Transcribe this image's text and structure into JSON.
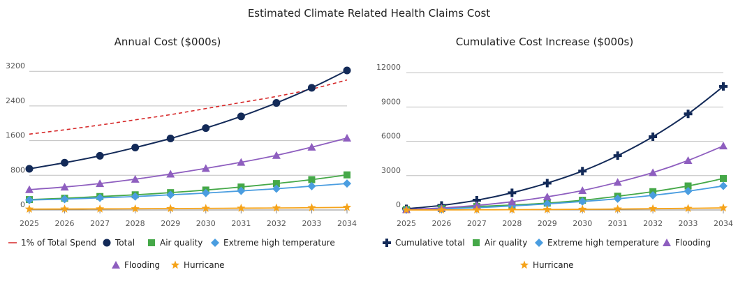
{
  "title": "Estimated Climate Related Health Claims Cost",
  "colors": {
    "spend": "#d62728",
    "total": "#132a58",
    "air": "#45a848",
    "heat": "#4a9de0",
    "flood": "#8e5ebf",
    "hurricane": "#f5a31a",
    "grid": "#bfbfbf",
    "axis": "#888888"
  },
  "chart_data": [
    {
      "type": "line",
      "title": "Annual Cost ($000s)",
      "x": [
        "2025",
        "2026",
        "2027",
        "2028",
        "2029",
        "2030",
        "2031",
        "2032",
        "2033",
        "2034"
      ],
      "ylim": [
        0,
        3300
      ],
      "yticks": [
        "0",
        "800",
        "1600",
        "2400",
        "3200"
      ],
      "ytick_values": [
        0,
        800,
        1600,
        2400,
        3200
      ],
      "grid": true,
      "legend_position": "bottom",
      "series": [
        {
          "name": "1% of Total Spend",
          "key": "spend",
          "marker": "dash",
          "values": [
            1750,
            1850,
            1960,
            2080,
            2200,
            2340,
            2480,
            2620,
            2790,
            3000
          ]
        },
        {
          "name": "Total",
          "key": "total",
          "marker": "circle",
          "values": [
            950,
            1090,
            1250,
            1440,
            1650,
            1890,
            2160,
            2470,
            2820,
            3220
          ]
        },
        {
          "name": "Air quality",
          "key": "air",
          "marker": "square",
          "values": [
            240,
            270,
            310,
            350,
            400,
            460,
            530,
            610,
            700,
            810
          ]
        },
        {
          "name": "Extreme high temperature",
          "key": "heat",
          "marker": "diamond",
          "values": [
            230,
            250,
            280,
            310,
            350,
            390,
            440,
            490,
            550,
            610
          ]
        },
        {
          "name": "Flooding",
          "key": "flood",
          "marker": "triangle",
          "values": [
            470,
            530,
            610,
            710,
            830,
            960,
            1100,
            1260,
            1450,
            1660
          ]
        },
        {
          "name": "Hurricane",
          "key": "hurricane",
          "marker": "star",
          "values": [
            20,
            22,
            25,
            28,
            32,
            36,
            41,
            46,
            52,
            60
          ]
        }
      ]
    },
    {
      "type": "line",
      "title": "Cumulative Cost Increase ($000s)",
      "x": [
        "2025",
        "2026",
        "2027",
        "2028",
        "2029",
        "2030",
        "2031",
        "2032",
        "2033",
        "2034"
      ],
      "ylim": [
        0,
        12500
      ],
      "yticks": [
        "0",
        "3000",
        "6000",
        "9000",
        "12000"
      ],
      "ytick_values": [
        0,
        3000,
        6000,
        9000,
        12000
      ],
      "grid": true,
      "legend_position": "bottom",
      "series": [
        {
          "name": "Cumulative total",
          "key": "total",
          "marker": "cross",
          "values": [
            100,
            400,
            850,
            1500,
            2350,
            3400,
            4750,
            6400,
            8400,
            10800
          ]
        },
        {
          "name": "Air quality",
          "key": "air",
          "marker": "square",
          "values": [
            30,
            120,
            300,
            430,
            600,
            850,
            1200,
            1600,
            2100,
            2750
          ]
        },
        {
          "name": "Extreme high temperature",
          "key": "heat",
          "marker": "diamond",
          "values": [
            20,
            90,
            200,
            350,
            530,
            740,
            980,
            1280,
            1650,
            2100
          ]
        },
        {
          "name": "Flooding",
          "key": "flood",
          "marker": "triangle",
          "values": [
            40,
            170,
            400,
            720,
            1150,
            1700,
            2420,
            3270,
            4330,
            5600
          ]
        },
        {
          "name": "Hurricane",
          "key": "hurricane",
          "marker": "star",
          "values": [
            0,
            5,
            15,
            25,
            40,
            60,
            80,
            110,
            140,
            180
          ]
        }
      ]
    }
  ]
}
